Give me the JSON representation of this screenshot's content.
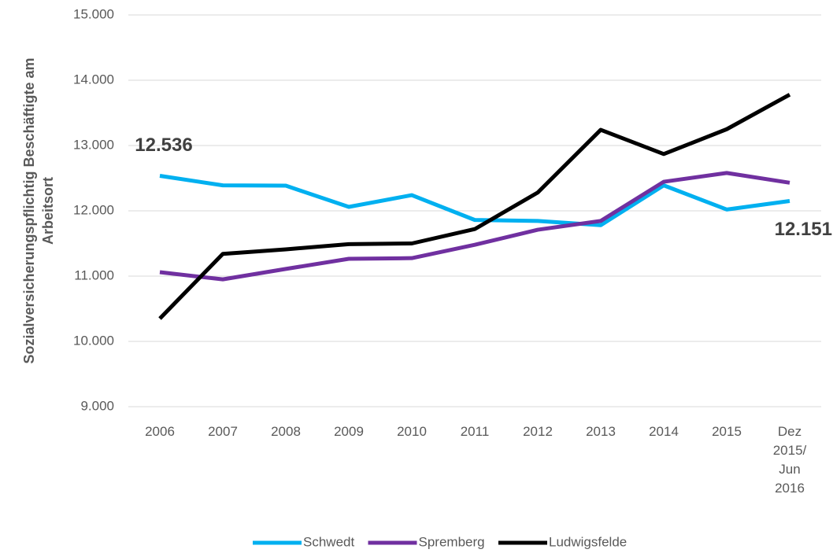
{
  "chart_data": {
    "type": "line",
    "ylabel": [
      "Sozialversicherungspflichtig Beschäftigte am",
      "Arbeitsort"
    ],
    "categories": [
      "2006",
      "2007",
      "2008",
      "2009",
      "2010",
      "2011",
      "2012",
      "2013",
      "2014",
      "2015",
      "Dez 2015/ Jun 2016"
    ],
    "series": [
      {
        "name": "Schwedt",
        "color": "#00b0f0",
        "values": [
          12536,
          12390,
          12385,
          12060,
          12240,
          11860,
          11845,
          11780,
          12390,
          12020,
          12151
        ],
        "value_labels": [
          "12.536",
          null,
          null,
          null,
          null,
          null,
          null,
          null,
          null,
          null,
          "12.151"
        ]
      },
      {
        "name": "Spremberg",
        "color": "#7030a0",
        "values": [
          11060,
          10950,
          11110,
          11265,
          11275,
          11480,
          11710,
          11845,
          12445,
          12580,
          12430
        ]
      },
      {
        "name": "Ludwigsfelde",
        "color": "#000000",
        "values": [
          10350,
          11340,
          11410,
          11490,
          11500,
          11720,
          12280,
          13240,
          12870,
          13250,
          13780
        ]
      }
    ],
    "ylim": [
      9000,
      15000
    ],
    "yticks": [
      {
        "value": 9000,
        "label": "9.000"
      },
      {
        "value": 10000,
        "label": "10.000"
      },
      {
        "value": 11000,
        "label": "11.000"
      },
      {
        "value": 12000,
        "label": "12.000"
      },
      {
        "value": 13000,
        "label": "13.000"
      },
      {
        "value": 14000,
        "label": "14.000"
      },
      {
        "value": 15000,
        "label": "15.000"
      }
    ],
    "grid": true,
    "legend": "bottom"
  }
}
